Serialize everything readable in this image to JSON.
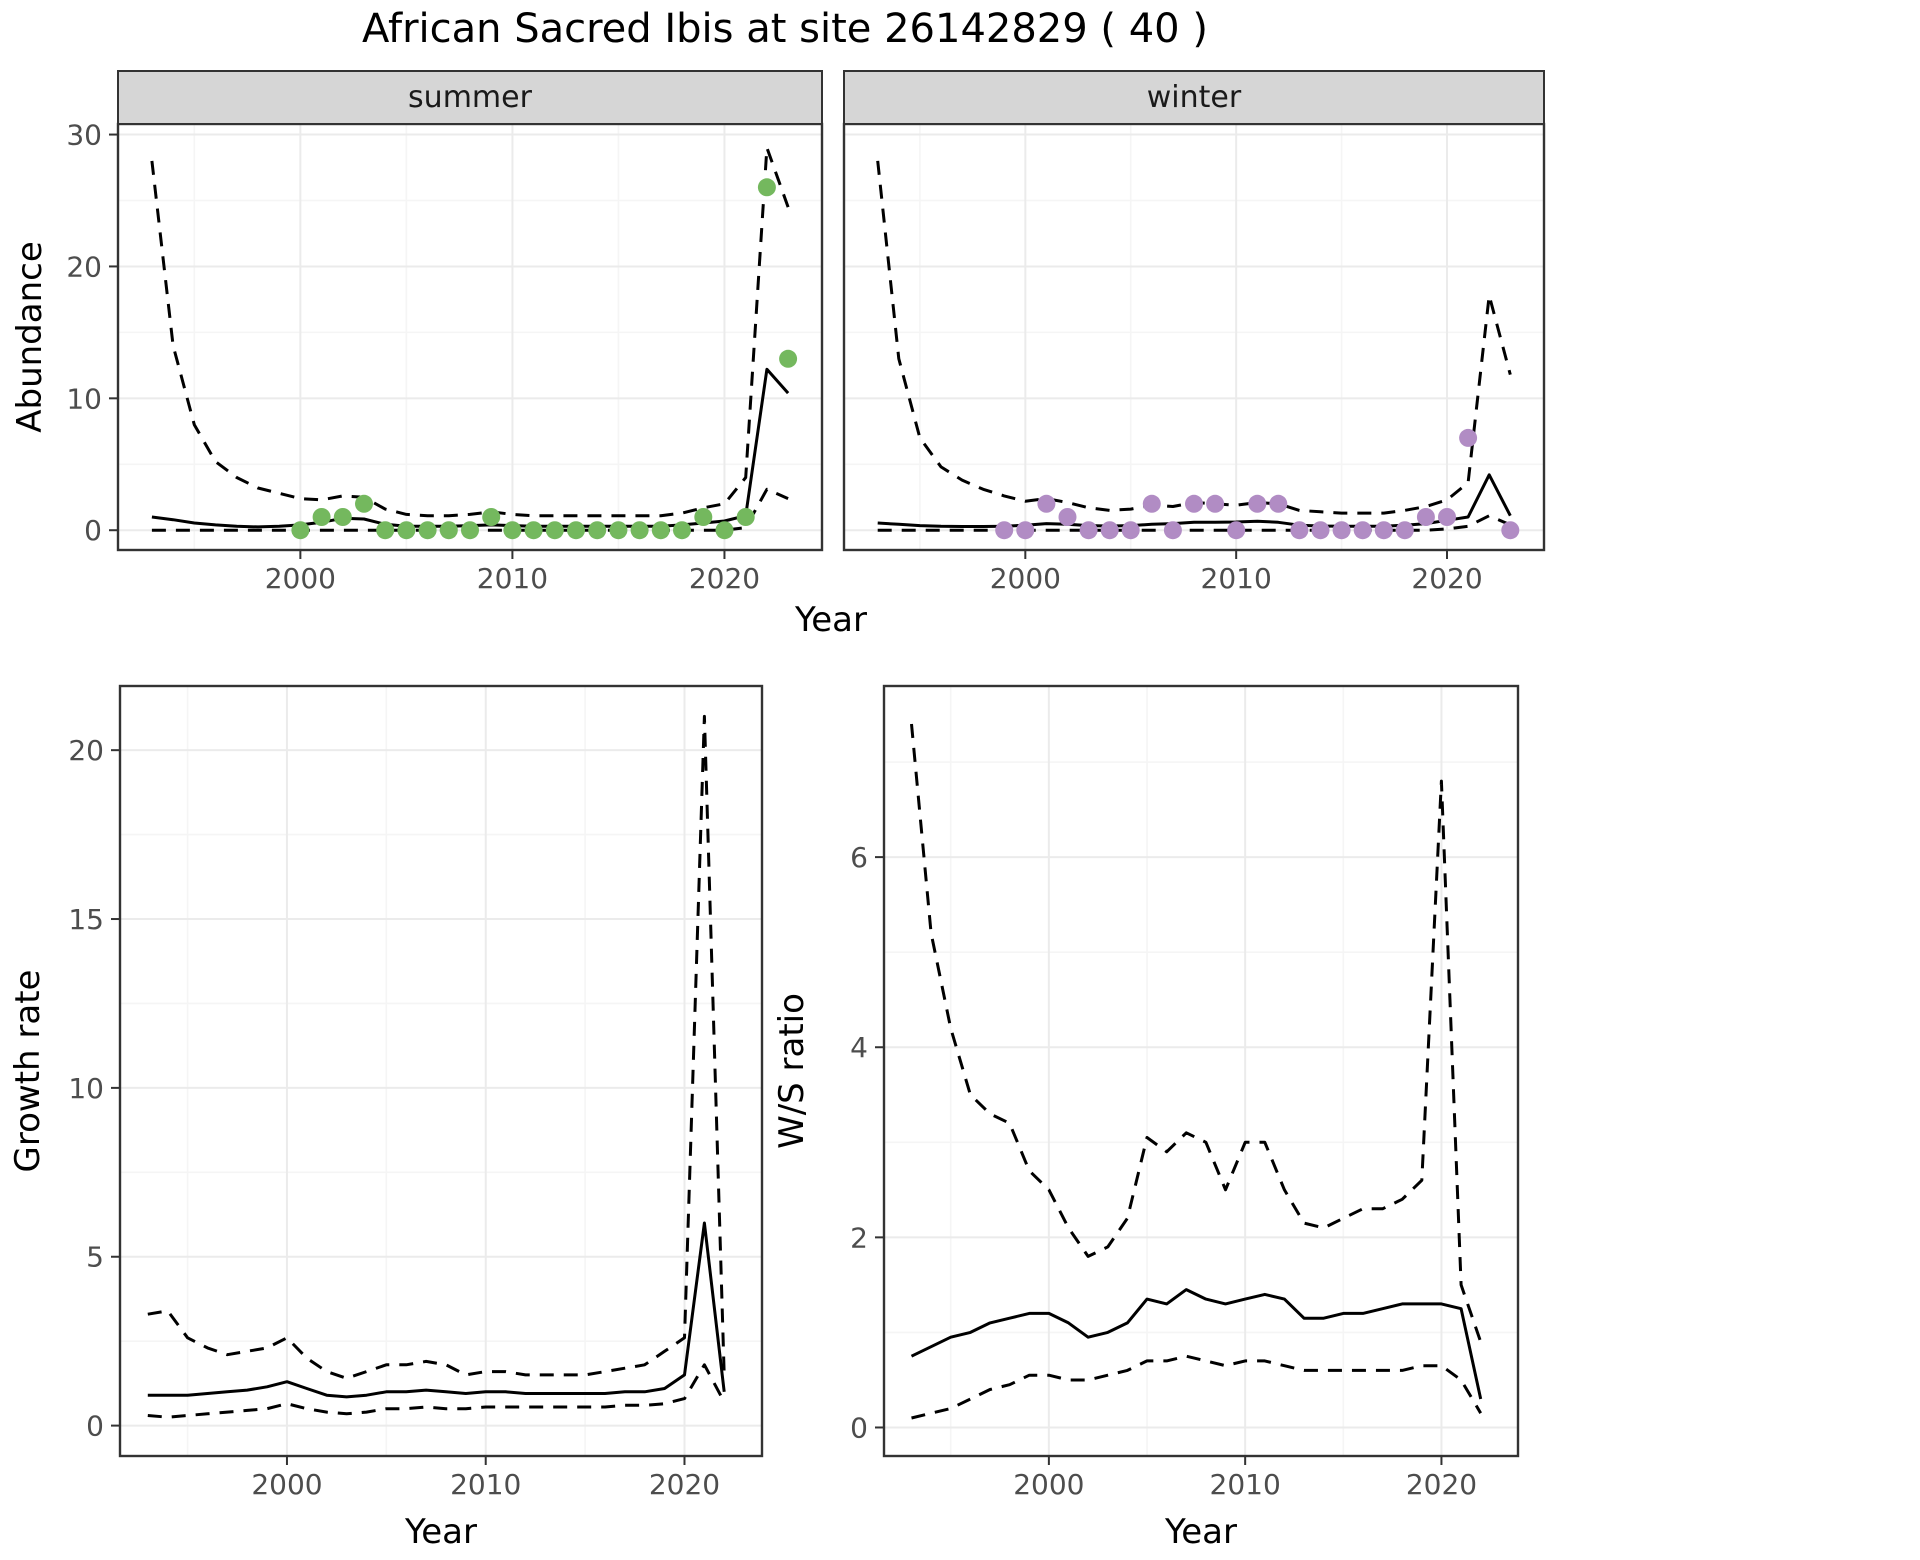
{
  "title": "African Sacred Ibis at site 26142829 ( 40 )",
  "species": "African Sacred Ibis",
  "site_id": "26142829",
  "site_n": "40",
  "labels": {
    "year": "Year",
    "abundance": "Abundance",
    "growth": "Growth rate",
    "ws": "W/S ratio"
  },
  "facets": [
    "summer",
    "winter"
  ],
  "colors": {
    "summer_points": "#74B85E",
    "winter_points": "#B18CC4",
    "line": "#000000",
    "grid_major": "#EBEBEB",
    "grid_minor": "#F5F5F5",
    "panel_border": "#333333",
    "strip_bg": "#D6D6D6",
    "strip_text": "#1A1A1A",
    "tick_text": "#4D4D4D"
  },
  "chart_data": [
    {
      "id": "abundance-summer",
      "type": "line",
      "facet_label": "summer",
      "xlabel": "Year",
      "ylabel": "Abundance",
      "xlim": [
        1991.4,
        2024.6
      ],
      "ylim": [
        -1.5,
        30.8
      ],
      "xticks": [
        2000,
        2010,
        2020
      ],
      "xminor": [
        1995,
        2005,
        2015
      ],
      "yticks": [
        0,
        10,
        20,
        30
      ],
      "yminor": [
        5,
        15,
        25
      ],
      "x": [
        1993,
        1994,
        1995,
        1996,
        1997,
        1998,
        1999,
        2000,
        2001,
        2002,
        2003,
        2004,
        2005,
        2006,
        2007,
        2008,
        2009,
        2010,
        2011,
        2012,
        2013,
        2014,
        2015,
        2016,
        2017,
        2018,
        2019,
        2020,
        2021,
        2022,
        2023
      ],
      "series": [
        {
          "name": "upper-ci",
          "style": "dashed",
          "values": [
            28,
            14,
            8,
            5.2,
            4,
            3.2,
            2.8,
            2.4,
            2.3,
            2.6,
            2.5,
            1.6,
            1.2,
            1.1,
            1.1,
            1.2,
            1.4,
            1.2,
            1.1,
            1.1,
            1.1,
            1.1,
            1.1,
            1.1,
            1.1,
            1.3,
            1.7,
            2.0,
            4.0,
            29,
            24.5
          ]
        },
        {
          "name": "fit",
          "style": "solid",
          "values": [
            1.0,
            0.8,
            0.55,
            0.4,
            0.3,
            0.25,
            0.3,
            0.4,
            0.6,
            0.9,
            0.85,
            0.45,
            0.3,
            0.3,
            0.3,
            0.35,
            0.4,
            0.35,
            0.3,
            0.3,
            0.3,
            0.3,
            0.3,
            0.3,
            0.3,
            0.4,
            0.55,
            0.7,
            1.1,
            12.2,
            10.4
          ]
        },
        {
          "name": "lower-ci",
          "style": "dashed",
          "values": [
            0,
            0,
            0,
            0,
            0,
            0,
            0,
            0,
            0,
            0,
            0,
            0,
            0,
            0,
            0,
            0,
            0,
            0,
            0,
            0,
            0,
            0,
            0,
            0,
            0,
            0,
            0,
            0,
            0.2,
            3.1,
            2.4
          ]
        }
      ],
      "points": {
        "name": "observed-counts-summer",
        "color_key": "summer_points",
        "x": [
          2000,
          2001,
          2002,
          2003,
          2004,
          2005,
          2006,
          2007,
          2008,
          2009,
          2010,
          2011,
          2012,
          2013,
          2014,
          2015,
          2016,
          2017,
          2018,
          2019,
          2020,
          2021,
          2022,
          2023
        ],
        "y": [
          0,
          1,
          1,
          2,
          0,
          0,
          0,
          0,
          0,
          1,
          0,
          0,
          0,
          0,
          0,
          0,
          0,
          0,
          0,
          1,
          0,
          1,
          26,
          13
        ]
      }
    },
    {
      "id": "abundance-winter",
      "type": "line",
      "facet_label": "winter",
      "xlabel": "Year",
      "ylabel": "Abundance",
      "xlim": [
        1991.4,
        2024.6
      ],
      "ylim": [
        -1.5,
        30.8
      ],
      "xticks": [
        2000,
        2010,
        2020
      ],
      "xminor": [
        1995,
        2005,
        2015
      ],
      "yticks": [
        0,
        10,
        20,
        30
      ],
      "yminor": [
        5,
        15,
        25
      ],
      "x": [
        1993,
        1994,
        1995,
        1996,
        1997,
        1998,
        1999,
        2000,
        2001,
        2002,
        2003,
        2004,
        2005,
        2006,
        2007,
        2008,
        2009,
        2010,
        2011,
        2012,
        2013,
        2014,
        2015,
        2016,
        2017,
        2018,
        2019,
        2020,
        2021,
        2022,
        2023
      ],
      "series": [
        {
          "name": "upper-ci",
          "style": "dashed",
          "values": [
            28,
            13,
            7,
            4.8,
            3.8,
            3.1,
            2.6,
            2.2,
            2.4,
            2.1,
            1.7,
            1.5,
            1.6,
            1.9,
            1.8,
            2.1,
            2.0,
            1.9,
            2.1,
            2.0,
            1.5,
            1.4,
            1.3,
            1.3,
            1.3,
            1.5,
            1.8,
            2.3,
            3.6,
            17.8,
            11.8
          ]
        },
        {
          "name": "fit",
          "style": "solid",
          "values": [
            0.55,
            0.45,
            0.35,
            0.3,
            0.28,
            0.28,
            0.3,
            0.38,
            0.5,
            0.45,
            0.35,
            0.32,
            0.35,
            0.45,
            0.5,
            0.6,
            0.6,
            0.62,
            0.68,
            0.6,
            0.38,
            0.32,
            0.3,
            0.3,
            0.3,
            0.38,
            0.5,
            0.75,
            1.0,
            4.2,
            1.1
          ]
        },
        {
          "name": "lower-ci",
          "style": "dashed",
          "values": [
            0,
            0,
            0,
            0,
            0,
            0,
            0,
            0,
            0,
            0,
            0,
            0,
            0,
            0,
            0,
            0,
            0,
            0,
            0,
            0,
            0,
            0,
            0,
            0,
            0,
            0,
            0,
            0.1,
            0.3,
            1.1,
            0.4
          ]
        }
      ],
      "points": {
        "name": "observed-counts-winter",
        "color_key": "winter_points",
        "x": [
          1999,
          2000,
          2001,
          2002,
          2003,
          2004,
          2005,
          2006,
          2007,
          2008,
          2009,
          2010,
          2011,
          2012,
          2013,
          2014,
          2015,
          2016,
          2017,
          2018,
          2019,
          2020,
          2021,
          2023
        ],
        "y": [
          0,
          0,
          2,
          1,
          0,
          0,
          0,
          2,
          0,
          2,
          2,
          0,
          2,
          2,
          0,
          0,
          0,
          0,
          0,
          0,
          1,
          1,
          7,
          0
        ]
      }
    },
    {
      "id": "growth-rate",
      "type": "line",
      "facet_label": null,
      "xlabel": "Year",
      "ylabel": "Growth rate",
      "xlim": [
        1991.6,
        2023.9
      ],
      "ylim": [
        -0.9,
        21.9
      ],
      "xticks": [
        2000,
        2010,
        2020
      ],
      "xminor": [
        1995,
        2005,
        2015
      ],
      "yticks": [
        0,
        5,
        10,
        15,
        20
      ],
      "yminor": [
        2.5,
        7.5,
        12.5,
        17.5
      ],
      "x": [
        1993,
        1994,
        1995,
        1996,
        1997,
        1998,
        1999,
        2000,
        2001,
        2002,
        2003,
        2004,
        2005,
        2006,
        2007,
        2008,
        2009,
        2010,
        2011,
        2012,
        2013,
        2014,
        2015,
        2016,
        2017,
        2018,
        2019,
        2020,
        2021,
        2022
      ],
      "series": [
        {
          "name": "upper-ci",
          "style": "dashed",
          "values": [
            3.3,
            3.4,
            2.6,
            2.3,
            2.1,
            2.2,
            2.3,
            2.6,
            2.0,
            1.6,
            1.4,
            1.6,
            1.8,
            1.8,
            1.9,
            1.8,
            1.5,
            1.6,
            1.6,
            1.5,
            1.5,
            1.5,
            1.5,
            1.6,
            1.7,
            1.8,
            2.2,
            2.6,
            21,
            1.5
          ]
        },
        {
          "name": "fit",
          "style": "solid",
          "values": [
            0.9,
            0.9,
            0.9,
            0.95,
            1.0,
            1.05,
            1.15,
            1.3,
            1.1,
            0.9,
            0.85,
            0.9,
            1.0,
            1.0,
            1.05,
            1.0,
            0.95,
            1.0,
            1.0,
            0.95,
            0.95,
            0.95,
            0.95,
            0.95,
            1.0,
            1.0,
            1.1,
            1.5,
            6.0,
            1.0
          ]
        },
        {
          "name": "lower-ci",
          "style": "dashed",
          "values": [
            0.3,
            0.25,
            0.3,
            0.35,
            0.4,
            0.45,
            0.5,
            0.65,
            0.5,
            0.4,
            0.35,
            0.4,
            0.5,
            0.5,
            0.55,
            0.5,
            0.5,
            0.55,
            0.55,
            0.55,
            0.55,
            0.55,
            0.55,
            0.55,
            0.6,
            0.6,
            0.65,
            0.8,
            1.8,
            0.7
          ]
        }
      ],
      "points": null
    },
    {
      "id": "ws-ratio",
      "type": "line",
      "facet_label": null,
      "xlabel": "Year",
      "ylabel": "W/S ratio",
      "xlim": [
        1991.6,
        2023.9
      ],
      "ylim": [
        -0.3,
        7.8
      ],
      "xticks": [
        2000,
        2010,
        2020
      ],
      "xminor": [
        1995,
        2005,
        2015
      ],
      "yticks": [
        0,
        2,
        4,
        6
      ],
      "yminor": [
        1,
        3,
        5,
        7
      ],
      "x": [
        1993,
        1994,
        1995,
        1996,
        1997,
        1998,
        1999,
        2000,
        2001,
        2002,
        2003,
        2004,
        2005,
        2006,
        2007,
        2008,
        2009,
        2010,
        2011,
        2012,
        2013,
        2014,
        2015,
        2016,
        2017,
        2018,
        2019,
        2020,
        2021,
        2022
      ],
      "series": [
        {
          "name": "upper-ci",
          "style": "dashed",
          "values": [
            7.4,
            5.2,
            4.2,
            3.5,
            3.3,
            3.2,
            2.7,
            2.5,
            2.1,
            1.8,
            1.9,
            2.2,
            3.05,
            2.9,
            3.1,
            3.0,
            2.5,
            3.0,
            3.0,
            2.5,
            2.15,
            2.1,
            2.2,
            2.3,
            2.3,
            2.4,
            2.6,
            6.8,
            1.5,
            0.9
          ]
        },
        {
          "name": "fit",
          "style": "solid",
          "values": [
            0.75,
            0.85,
            0.95,
            1.0,
            1.1,
            1.15,
            1.2,
            1.2,
            1.1,
            0.95,
            1.0,
            1.1,
            1.35,
            1.3,
            1.45,
            1.35,
            1.3,
            1.35,
            1.4,
            1.35,
            1.15,
            1.15,
            1.2,
            1.2,
            1.25,
            1.3,
            1.3,
            1.3,
            1.25,
            0.3
          ]
        },
        {
          "name": "lower-ci",
          "style": "dashed",
          "values": [
            0.1,
            0.15,
            0.2,
            0.3,
            0.4,
            0.45,
            0.55,
            0.55,
            0.5,
            0.5,
            0.55,
            0.6,
            0.7,
            0.7,
            0.75,
            0.7,
            0.65,
            0.7,
            0.7,
            0.65,
            0.6,
            0.6,
            0.6,
            0.6,
            0.6,
            0.6,
            0.65,
            0.65,
            0.5,
            0.15
          ]
        }
      ],
      "points": null
    }
  ]
}
